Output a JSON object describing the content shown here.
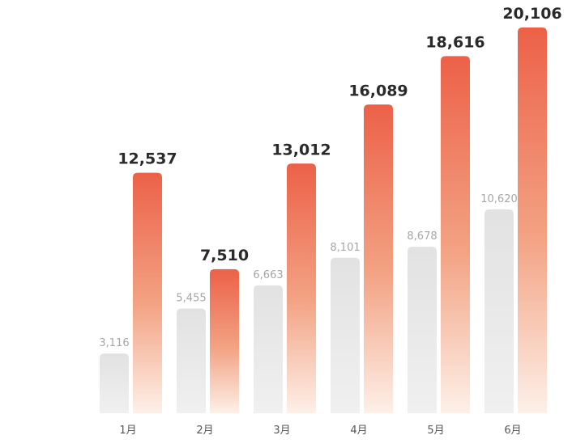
{
  "chart_data": {
    "type": "bar",
    "title": "",
    "xlabel": "",
    "ylabel": "",
    "ylim": [
      0,
      21500
    ],
    "categories": [
      "1月",
      "2月",
      "3月",
      "4月",
      "5月",
      "6月"
    ],
    "series": [
      {
        "values": [
          3116,
          5455,
          6663,
          8101,
          8678,
          10620
        ],
        "value_labels": [
          "3,116",
          "5,455",
          "6,663",
          "8,101",
          "8,678",
          "10,620"
        ],
        "color": "#e3e3e3"
      },
      {
        "values": [
          12537,
          7510,
          13012,
          16089,
          18616,
          20106
        ],
        "value_labels": [
          "12,537",
          "7,510",
          "13,012",
          "16,089",
          "18,616",
          "20,106"
        ],
        "color_top": "#ec6148",
        "color_bottom": "#fdf0e8"
      }
    ],
    "legend": "none",
    "grid": false
  }
}
